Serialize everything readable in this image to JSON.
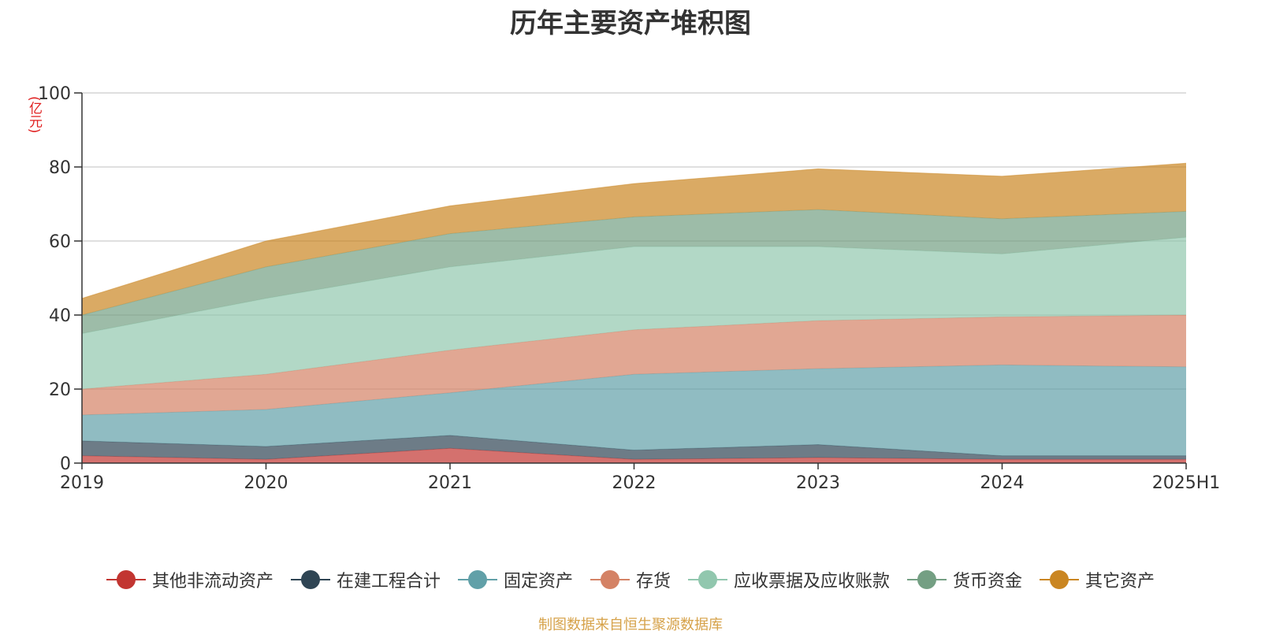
{
  "chart_data": {
    "type": "area",
    "stacked": true,
    "title": "历年主要资产堆积图",
    "ylabel": "(亿元)",
    "categories": [
      "2019",
      "2020",
      "2021",
      "2022",
      "2023",
      "2024",
      "2025H1"
    ],
    "ylim": [
      0,
      100
    ],
    "yticks": [
      0,
      20,
      40,
      60,
      80,
      100
    ],
    "grid": true,
    "legend_position": "bottom",
    "series": [
      {
        "name": "其他非流动资产",
        "color": "#c23531",
        "values": [
          2.0,
          1.0,
          4.0,
          1.0,
          1.5,
          1.0,
          1.0
        ]
      },
      {
        "name": "在建工程合计",
        "color": "#2f4554",
        "values": [
          4.0,
          3.5,
          3.5,
          2.5,
          3.5,
          1.0,
          1.0
        ]
      },
      {
        "name": "固定资产",
        "color": "#61a0a8",
        "values": [
          7.0,
          10.0,
          11.5,
          20.5,
          20.5,
          24.5,
          24.0
        ]
      },
      {
        "name": "存货",
        "color": "#d48265",
        "values": [
          7.0,
          9.5,
          11.5,
          12.0,
          13.0,
          13.0,
          14.0
        ]
      },
      {
        "name": "应收票据及应收账款",
        "color": "#91c7ae",
        "values": [
          15.0,
          20.5,
          22.5,
          22.5,
          20.0,
          17.0,
          21.0
        ]
      },
      {
        "name": "货币资金",
        "color": "#749f83",
        "values": [
          5.0,
          8.5,
          9.0,
          8.0,
          10.0,
          9.5,
          7.0
        ]
      },
      {
        "name": "其它资产",
        "color": "#ca8622",
        "values": [
          4.5,
          7.0,
          7.5,
          9.0,
          11.0,
          11.5,
          13.0
        ]
      }
    ],
    "source_note": "制图数据来自恒生聚源数据库"
  }
}
